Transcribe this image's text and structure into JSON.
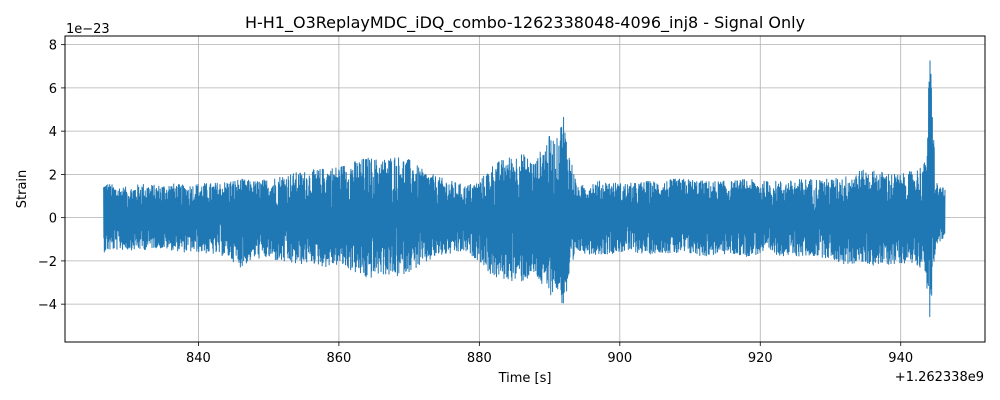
{
  "chart_data": {
    "type": "line",
    "title": "H-H1_O3ReplayMDC_iDQ_combo-1262338048-4096_inj8 - Signal Only",
    "xlabel": "Time [s]",
    "ylabel": "Strain",
    "x_offset_text": "+1.262338e9",
    "y_scale_text": "1e−23",
    "xlim": [
      821,
      952
    ],
    "ylim": [
      -5.75,
      8.4
    ],
    "x_ticks": [
      840,
      860,
      880,
      900,
      920,
      940
    ],
    "x_tick_labels": [
      "840",
      "860",
      "880",
      "900",
      "920",
      "940"
    ],
    "y_ticks": [
      -4,
      -2,
      0,
      2,
      4,
      6,
      8
    ],
    "y_tick_labels": [
      "−4",
      "−2",
      "0",
      "2",
      "4",
      "6",
      "8"
    ],
    "grid": true,
    "line_color": "#1f77b4",
    "series": [
      {
        "x": [
          826.5,
          828,
          830,
          832,
          834,
          836,
          838,
          840,
          842,
          844,
          846,
          848,
          850,
          852,
          854,
          856,
          858,
          860,
          862,
          864,
          866,
          868,
          870,
          872,
          874,
          876,
          878,
          880,
          882,
          884,
          886,
          888,
          889,
          890,
          891,
          892,
          892.5,
          894,
          896,
          898,
          900,
          902,
          904,
          906,
          908,
          910,
          912,
          914,
          916,
          918,
          920,
          922,
          924,
          926,
          928,
          930,
          932,
          934,
          936,
          938,
          940,
          942,
          943.5,
          944.2,
          945,
          946.3
        ],
        "upper": [
          1.7,
          1.5,
          1.4,
          1.6,
          1.5,
          1.6,
          1.5,
          1.6,
          1.6,
          1.7,
          1.8,
          1.7,
          1.8,
          2.0,
          2.1,
          2.2,
          2.3,
          2.4,
          2.6,
          2.8,
          2.7,
          2.9,
          2.7,
          2.2,
          1.9,
          1.7,
          1.5,
          1.7,
          2.5,
          2.8,
          3.0,
          2.6,
          3.3,
          3.8,
          3.6,
          4.9,
          3.5,
          1.4,
          1.7,
          1.7,
          1.6,
          1.6,
          1.7,
          1.7,
          1.8,
          1.8,
          1.7,
          1.7,
          1.7,
          1.8,
          1.7,
          1.7,
          1.7,
          1.8,
          1.8,
          1.8,
          1.9,
          2.2,
          2.2,
          2.1,
          2.0,
          2.2,
          2.6,
          7.8,
          1.7,
          1.3
        ],
        "lower": [
          -1.6,
          -1.5,
          -1.5,
          -1.5,
          -1.4,
          -1.5,
          -1.6,
          -1.6,
          -1.7,
          -1.8,
          -2.3,
          -1.9,
          -1.9,
          -2.1,
          -2.2,
          -2.1,
          -2.3,
          -2.2,
          -2.5,
          -2.9,
          -2.6,
          -2.8,
          -2.5,
          -2.2,
          -1.8,
          -1.7,
          -1.6,
          -2.0,
          -2.8,
          -2.9,
          -3.0,
          -2.7,
          -3.3,
          -3.6,
          -3.4,
          -4.2,
          -3.5,
          -1.6,
          -1.7,
          -1.7,
          -1.6,
          -1.6,
          -1.7,
          -1.6,
          -1.7,
          -1.7,
          -1.8,
          -1.7,
          -1.7,
          -1.8,
          -1.7,
          -1.7,
          -1.8,
          -1.8,
          -1.8,
          -1.9,
          -2.2,
          -2.1,
          -2.2,
          -2.2,
          -2.1,
          -2.1,
          -2.5,
          -5.1,
          -1.2,
          -1.0
        ]
      }
    ]
  }
}
